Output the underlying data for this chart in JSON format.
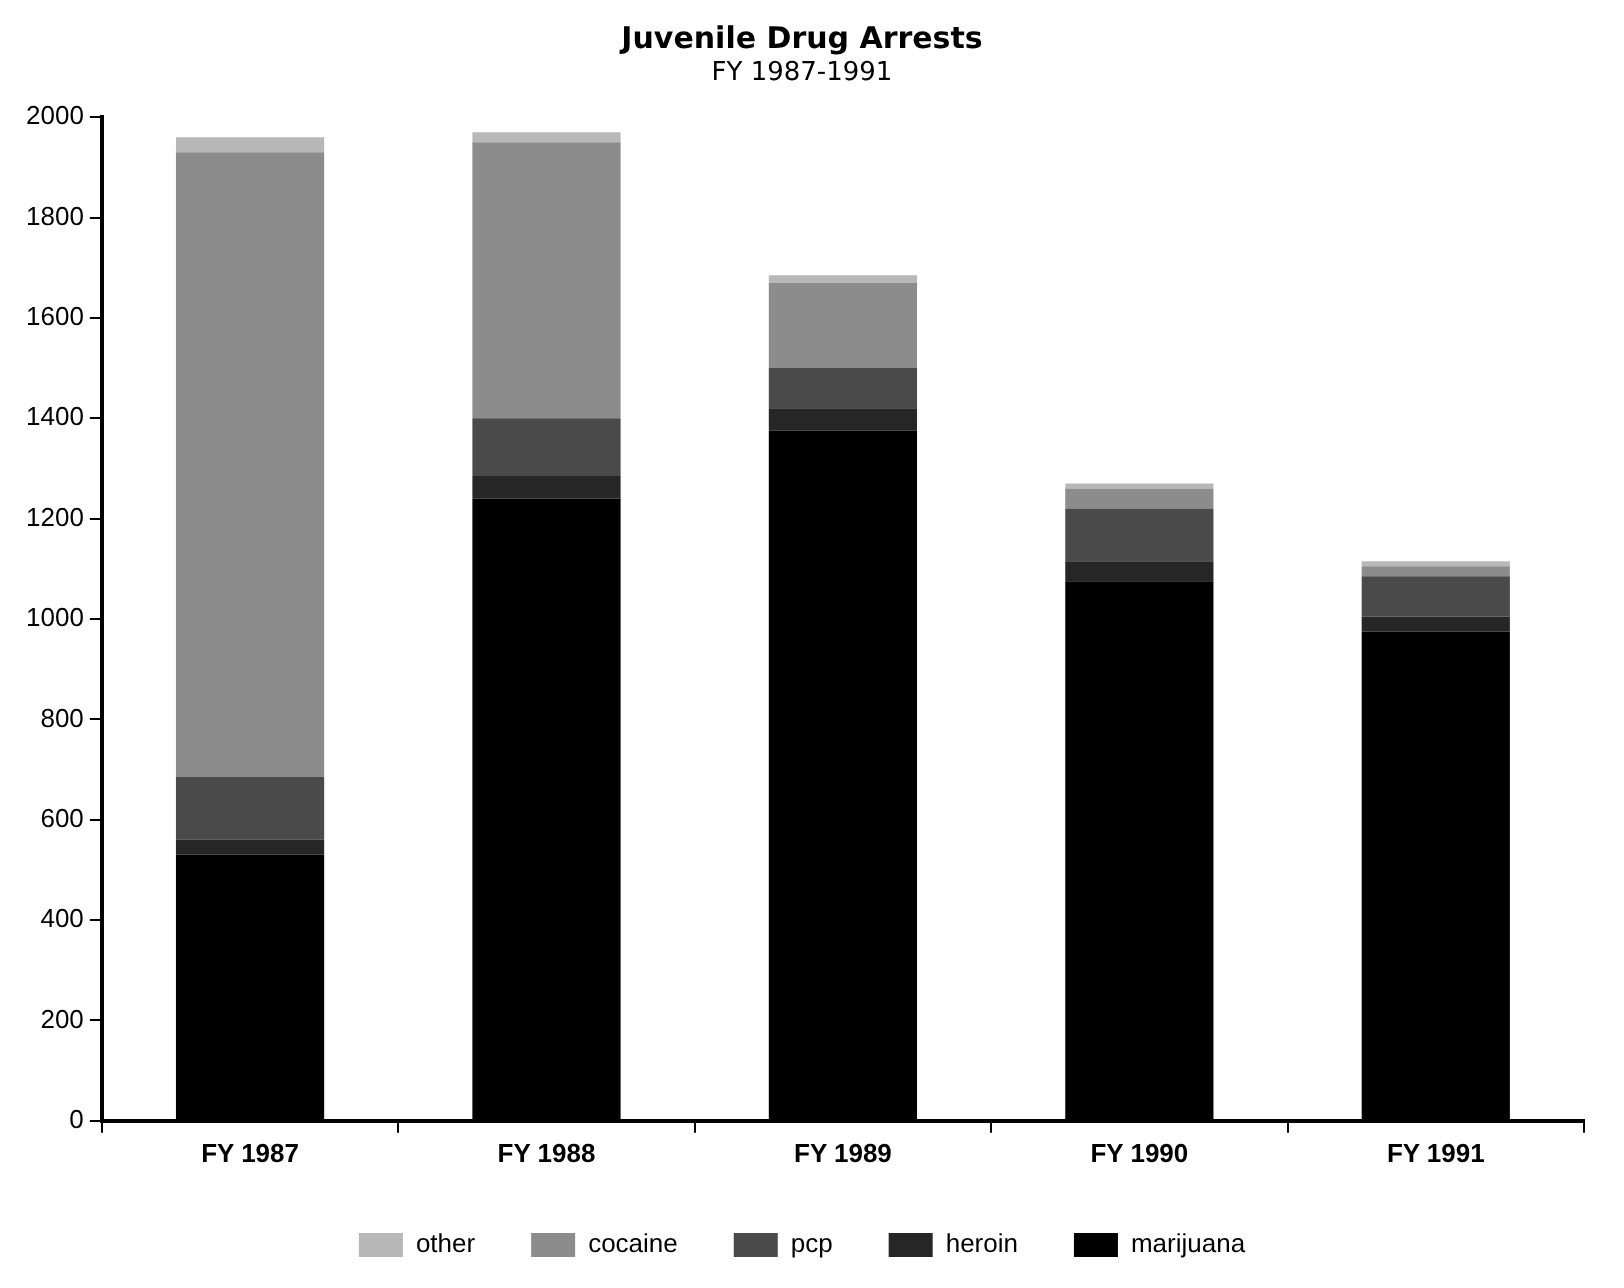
{
  "chart_data": {
    "type": "bar",
    "title": "Juvenile Drug Arrests",
    "subtitle": "FY 1987-1991",
    "categories": [
      "FY 1987",
      "FY 1988",
      "FY 1989",
      "FY 1990",
      "FY 1991"
    ],
    "stacked": true,
    "series": [
      {
        "name": "marijuana",
        "color": "#000000",
        "values": [
          530,
          1240,
          1375,
          1075,
          975
        ]
      },
      {
        "name": "heroin",
        "color": "#262626",
        "values": [
          30,
          45,
          45,
          40,
          30
        ]
      },
      {
        "name": "pcp",
        "color": "#4a4a4a",
        "values": [
          125,
          115,
          80,
          105,
          80
        ]
      },
      {
        "name": "cocaine",
        "color": "#8c8c8c",
        "values": [
          1245,
          550,
          170,
          40,
          20
        ]
      },
      {
        "name": "other",
        "color": "#b8b8b8",
        "values": [
          30,
          20,
          15,
          10,
          10
        ]
      }
    ],
    "ylim": [
      0,
      2000
    ],
    "yticks": [
      0,
      200,
      400,
      600,
      800,
      1000,
      1200,
      1400,
      1600,
      1800,
      2000
    ],
    "grid": false,
    "legend": "bottom"
  }
}
